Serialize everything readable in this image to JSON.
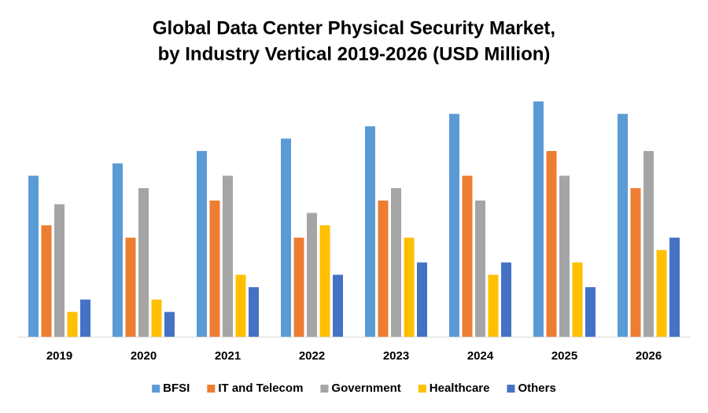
{
  "chart_data": {
    "type": "bar",
    "title": [
      "Global Data Center Physical Security Market,",
      "by Industry Vertical 2019-2026 (USD Million)"
    ],
    "categories": [
      "2019",
      "2020",
      "2021",
      "2022",
      "2023",
      "2024",
      "2025",
      "2026"
    ],
    "series": [
      {
        "name": "BFSI",
        "color": "#5b9bd5",
        "values": [
          13,
          14,
          15,
          16,
          17,
          18,
          19,
          18
        ]
      },
      {
        "name": "IT and Telecom",
        "color": "#ed7d31",
        "values": [
          9,
          8,
          11,
          8,
          11,
          13,
          15,
          12
        ]
      },
      {
        "name": "Government",
        "color": "#a5a5a5",
        "values": [
          10.7,
          12,
          13,
          10,
          12,
          11,
          13,
          15
        ]
      },
      {
        "name": "Healthcare",
        "color": "#ffc000",
        "values": [
          2,
          3,
          5,
          9,
          8,
          5,
          6,
          7
        ]
      },
      {
        "name": "Others",
        "color": "#4472c4",
        "values": [
          3,
          2,
          4,
          5,
          6,
          6,
          4,
          8
        ]
      }
    ],
    "legend": "bottom"
  }
}
